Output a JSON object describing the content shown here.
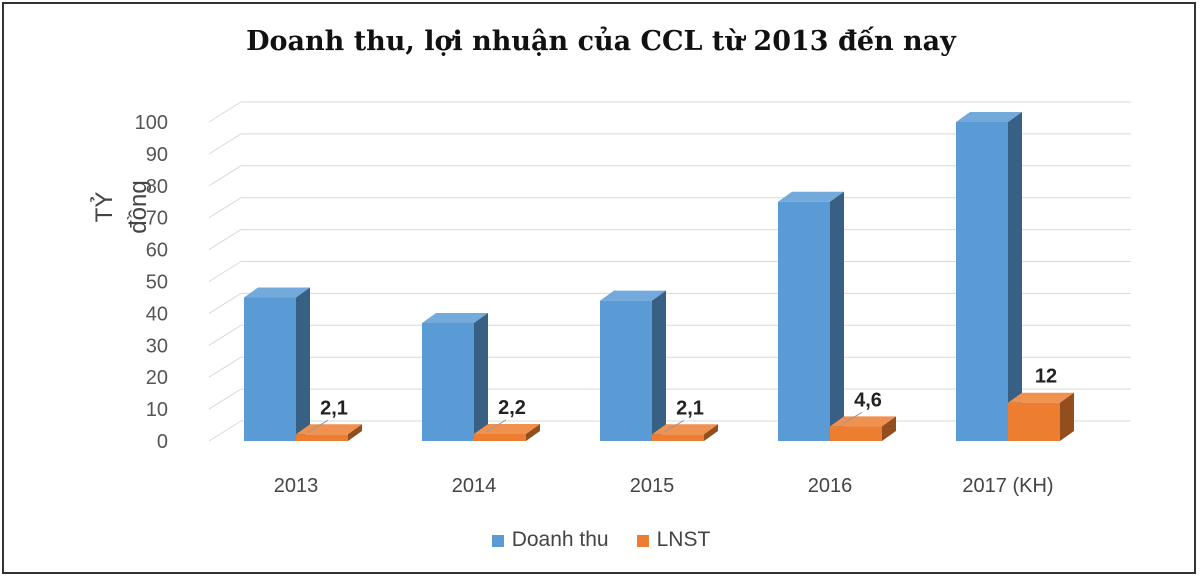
{
  "chart_data": {
    "type": "bar",
    "title": "Doanh thu, lợi nhuận  của CCL từ 2013 đến nay",
    "ylabel": "TỶ đồng",
    "xlabel": "",
    "categories": [
      "2013",
      "2014",
      "2015",
      "2016",
      "2017 (KH)"
    ],
    "ylim": [
      0,
      100
    ],
    "yticks": [
      0,
      10,
      20,
      30,
      40,
      50,
      60,
      70,
      80,
      90,
      100
    ],
    "grid": true,
    "legend_position": "bottom",
    "series": [
      {
        "name": "Doanh thu",
        "values": [
          45,
          37,
          44,
          75,
          100
        ],
        "color": "#5B9BD5",
        "labels": null
      },
      {
        "name": "LNST",
        "values": [
          2.1,
          2.2,
          2.1,
          4.6,
          12
        ],
        "color": "#ED7D31",
        "labels": [
          "2,1",
          "2,2",
          "2,1",
          "4,6",
          "12"
        ]
      }
    ]
  }
}
